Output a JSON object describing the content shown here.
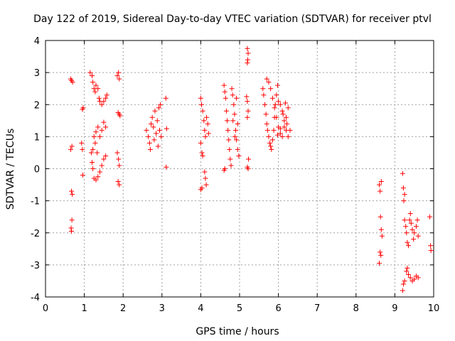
{
  "chart_data": {
    "type": "scatter",
    "title": "Day 122 of 2019, Sidereal Day-to-day VTEC variation (SDTVAR) for receiver ptvl",
    "xlabel": "GPS time / hours",
    "ylabel": "SDTVAR / TECUs",
    "xlim": [
      0,
      10
    ],
    "ylim": [
      -4,
      4
    ],
    "x_ticks": [
      "0",
      "1",
      "2",
      "3",
      "4",
      "5",
      "6",
      "7",
      "8",
      "9",
      "10"
    ],
    "y_ticks": [
      "4",
      "3",
      "2",
      "1",
      "0",
      "-1",
      "-2",
      "-3",
      "-4"
    ],
    "grid": true,
    "marker": "+",
    "marker_color": "#ff0000",
    "series": [
      {
        "name": "SDTVAR",
        "points": [
          [
            0.65,
            2.8
          ],
          [
            0.67,
            2.75
          ],
          [
            0.7,
            2.7
          ],
          [
            0.65,
            0.6
          ],
          [
            0.68,
            0.7
          ],
          [
            0.67,
            -0.7
          ],
          [
            0.69,
            -0.8
          ],
          [
            0.68,
            -1.6
          ],
          [
            0.66,
            -1.85
          ],
          [
            0.67,
            -1.95
          ],
          [
            0.95,
            1.85
          ],
          [
            0.97,
            1.9
          ],
          [
            0.93,
            0.8
          ],
          [
            0.95,
            0.6
          ],
          [
            0.96,
            -0.2
          ],
          [
            1.15,
            3.0
          ],
          [
            1.2,
            2.9
          ],
          [
            1.22,
            2.7
          ],
          [
            1.25,
            2.5
          ],
          [
            1.28,
            2.4
          ],
          [
            1.3,
            2.6
          ],
          [
            1.35,
            2.5
          ],
          [
            1.38,
            2.2
          ],
          [
            1.4,
            2.1
          ],
          [
            1.45,
            2.0
          ],
          [
            1.5,
            2.1
          ],
          [
            1.55,
            2.2
          ],
          [
            1.58,
            2.3
          ],
          [
            1.18,
            0.5
          ],
          [
            1.2,
            0.2
          ],
          [
            1.22,
            0.0
          ],
          [
            1.25,
            -0.3
          ],
          [
            1.3,
            -0.35
          ],
          [
            1.35,
            -0.25
          ],
          [
            1.4,
            -0.1
          ],
          [
            1.45,
            0.1
          ],
          [
            1.5,
            0.3
          ],
          [
            1.55,
            0.4
          ],
          [
            1.25,
            1.0
          ],
          [
            1.3,
            1.15
          ],
          [
            1.35,
            1.3
          ],
          [
            1.4,
            1.0
          ],
          [
            1.45,
            1.2
          ],
          [
            1.5,
            1.45
          ],
          [
            1.55,
            1.3
          ],
          [
            1.22,
            0.6
          ],
          [
            1.28,
            0.8
          ],
          [
            1.33,
            0.5
          ],
          [
            1.85,
            2.9
          ],
          [
            1.88,
            3.0
          ],
          [
            1.9,
            2.8
          ],
          [
            1.87,
            1.75
          ],
          [
            1.9,
            1.7
          ],
          [
            1.92,
            1.65
          ],
          [
            1.85,
            0.5
          ],
          [
            1.88,
            0.3
          ],
          [
            1.9,
            0.1
          ],
          [
            1.87,
            -0.4
          ],
          [
            1.9,
            -0.5
          ],
          [
            2.6,
            1.2
          ],
          [
            2.65,
            1.0
          ],
          [
            2.68,
            0.8
          ],
          [
            2.7,
            0.6
          ],
          [
            2.72,
            1.4
          ],
          [
            2.75,
            1.6
          ],
          [
            2.78,
            1.3
          ],
          [
            2.8,
            0.9
          ],
          [
            2.82,
            1.8
          ],
          [
            2.85,
            1.1
          ],
          [
            2.88,
            1.5
          ],
          [
            2.9,
            0.7
          ],
          [
            2.92,
            1.9
          ],
          [
            2.94,
            1.2
          ],
          [
            2.96,
            2.0
          ],
          [
            2.98,
            1.0
          ],
          [
            3.1,
            2.2
          ],
          [
            3.12,
            1.25
          ],
          [
            3.11,
            0.05
          ],
          [
            4.0,
            2.2
          ],
          [
            4.02,
            2.0
          ],
          [
            4.05,
            1.8
          ],
          [
            4.08,
            1.5
          ],
          [
            4.1,
            1.2
          ],
          [
            4.12,
            1.0
          ],
          [
            4.15,
            1.6
          ],
          [
            4.18,
            1.4
          ],
          [
            4.2,
            1.1
          ],
          [
            4.0,
            0.8
          ],
          [
            4.03,
            0.5
          ],
          [
            4.05,
            0.4
          ],
          [
            4.1,
            -0.1
          ],
          [
            4.12,
            -0.3
          ],
          [
            4.14,
            -0.5
          ],
          [
            4.0,
            -0.65
          ],
          [
            4.03,
            -0.6
          ],
          [
            4.6,
            2.6
          ],
          [
            4.62,
            2.4
          ],
          [
            4.64,
            2.2
          ],
          [
            4.66,
            1.8
          ],
          [
            4.68,
            1.5
          ],
          [
            4.7,
            1.2
          ],
          [
            4.72,
            0.9
          ],
          [
            4.74,
            0.6
          ],
          [
            4.76,
            0.3
          ],
          [
            4.78,
            0.1
          ],
          [
            4.6,
            -0.05
          ],
          [
            4.62,
            0.0
          ],
          [
            4.8,
            2.5
          ],
          [
            4.82,
            2.3
          ],
          [
            4.85,
            2.0
          ],
          [
            4.87,
            1.7
          ],
          [
            4.9,
            1.2
          ],
          [
            4.92,
            0.9
          ],
          [
            4.95,
            0.6
          ],
          [
            4.98,
            0.4
          ],
          [
            4.83,
            1.5
          ],
          [
            4.88,
            1.0
          ],
          [
            4.92,
            2.2
          ],
          [
            4.95,
            1.4
          ],
          [
            5.2,
            3.75
          ],
          [
            5.22,
            3.6
          ],
          [
            5.2,
            3.3
          ],
          [
            5.21,
            3.4
          ],
          [
            5.18,
            2.25
          ],
          [
            5.2,
            2.1
          ],
          [
            5.22,
            1.8
          ],
          [
            5.2,
            1.6
          ],
          [
            5.23,
            0.3
          ],
          [
            5.2,
            0.05
          ],
          [
            5.22,
            0.0
          ],
          [
            5.6,
            2.5
          ],
          [
            5.62,
            2.3
          ],
          [
            5.65,
            2.0
          ],
          [
            5.68,
            1.7
          ],
          [
            5.7,
            1.4
          ],
          [
            5.72,
            1.2
          ],
          [
            5.75,
            1.0
          ],
          [
            5.78,
            0.8
          ],
          [
            5.8,
            0.7
          ],
          [
            5.82,
            0.6
          ],
          [
            5.85,
            0.9
          ],
          [
            5.88,
            1.2
          ],
          [
            5.9,
            1.6
          ],
          [
            5.92,
            2.0
          ],
          [
            5.95,
            2.3
          ],
          [
            5.98,
            2.6
          ],
          [
            5.7,
            2.8
          ],
          [
            5.75,
            2.7
          ],
          [
            5.8,
            2.5
          ],
          [
            5.85,
            2.2
          ],
          [
            5.9,
            1.9
          ],
          [
            5.95,
            1.6
          ],
          [
            6.0,
            1.3
          ],
          [
            6.05,
            1.1
          ],
          [
            6.1,
            1.0
          ],
          [
            6.15,
            1.3
          ],
          [
            6.2,
            1.6
          ],
          [
            6.25,
            1.9
          ],
          [
            6.0,
            2.1
          ],
          [
            6.05,
            2.0
          ],
          [
            6.1,
            1.8
          ],
          [
            6.15,
            1.5
          ],
          [
            6.2,
            1.2
          ],
          [
            6.25,
            1.0
          ],
          [
            6.3,
            1.2
          ],
          [
            6.22,
            1.4
          ],
          [
            6.18,
            2.05
          ],
          [
            6.12,
            1.7
          ],
          [
            6.05,
            1.25
          ],
          [
            5.98,
            1.05
          ],
          [
            8.6,
            -0.5
          ],
          [
            8.62,
            -0.7
          ],
          [
            8.65,
            -0.4
          ],
          [
            8.63,
            -1.5
          ],
          [
            8.65,
            -1.9
          ],
          [
            8.67,
            -2.1
          ],
          [
            8.62,
            -2.6
          ],
          [
            8.64,
            -2.7
          ],
          [
            8.6,
            -2.95
          ],
          [
            9.2,
            -0.15
          ],
          [
            9.22,
            -0.6
          ],
          [
            9.25,
            -0.8
          ],
          [
            9.23,
            -1.0
          ],
          [
            9.25,
            -1.6
          ],
          [
            9.28,
            -1.8
          ],
          [
            9.3,
            -2.0
          ],
          [
            9.32,
            -2.3
          ],
          [
            9.35,
            -2.4
          ],
          [
            9.38,
            -1.6
          ],
          [
            9.4,
            -1.4
          ],
          [
            9.42,
            -1.7
          ],
          [
            9.45,
            -1.9
          ],
          [
            9.48,
            -2.2
          ],
          [
            9.5,
            -2.0
          ],
          [
            9.55,
            -1.8
          ],
          [
            9.58,
            -1.6
          ],
          [
            9.6,
            -2.1
          ],
          [
            9.2,
            -3.8
          ],
          [
            9.22,
            -3.6
          ],
          [
            9.25,
            -3.5
          ],
          [
            9.3,
            -3.2
          ],
          [
            9.32,
            -3.1
          ],
          [
            9.35,
            -3.3
          ],
          [
            9.4,
            -3.4
          ],
          [
            9.45,
            -3.5
          ],
          [
            9.5,
            -3.45
          ],
          [
            9.55,
            -3.35
          ],
          [
            9.6,
            -3.4
          ],
          [
            9.9,
            -1.5
          ],
          [
            9.92,
            -2.4
          ],
          [
            9.93,
            -2.55
          ]
        ]
      }
    ]
  }
}
